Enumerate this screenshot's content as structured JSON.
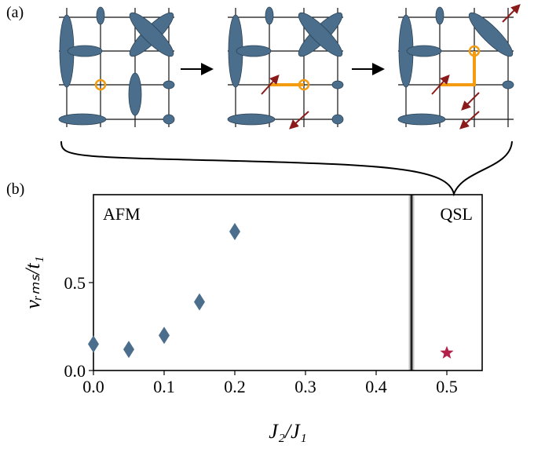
{
  "panel_labels": [
    "(a)",
    "(b)"
  ],
  "chart_data": {
    "type": "scatter",
    "xlabel": "J₂/J₁",
    "ylabel": "vᵣₘₛ/t₁",
    "annotations": [
      "AFM",
      "QSL"
    ],
    "transition_x": 0.45,
    "series": [
      {
        "name": "AFM",
        "color": "#4a6e8c",
        "marker": "diamond",
        "x": [
          0,
          0.05,
          0.1,
          0.15,
          0.2
        ],
        "values": [
          0.15,
          0.12,
          0.2,
          0.39,
          0.79
        ]
      },
      {
        "name": "QSL",
        "color": "#b5204a",
        "marker": "star",
        "x": [
          0.5
        ],
        "values": [
          0.1
        ]
      }
    ],
    "xlim": [
      0,
      0.55
    ],
    "ylim": [
      0,
      1.0
    ],
    "xticks": [
      {
        "value": 0,
        "label": "0.0"
      },
      0.1,
      0.2,
      0.3,
      0.4,
      0.5
    ],
    "yticks": [
      {
        "value": 0,
        "label": "0.0"
      },
      0.5
    ]
  }
}
